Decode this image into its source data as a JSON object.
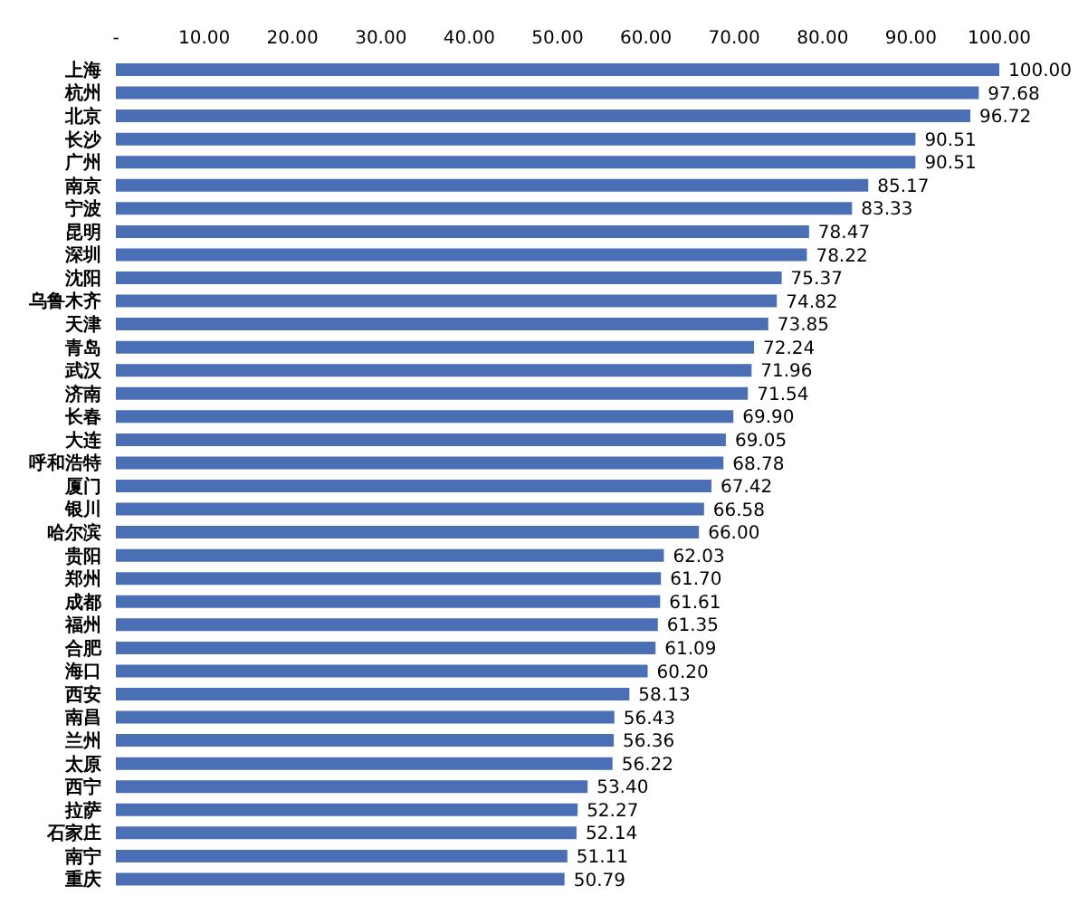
{
  "chart_data": {
    "type": "bar",
    "orientation": "horizontal",
    "categories": [
      "上海",
      "杭州",
      "北京",
      "长沙",
      "广州",
      "南京",
      "宁波",
      "昆明",
      "深圳",
      "沈阳",
      "乌鲁木齐",
      "天津",
      "青岛",
      "武汉",
      "济南",
      "长春",
      "大连",
      "呼和浩特",
      "厦门",
      "银川",
      "哈尔滨",
      "贵阳",
      "郑州",
      "成都",
      "福州",
      "合肥",
      "海口",
      "西安",
      "南昌",
      "兰州",
      "太原",
      "西宁",
      "拉萨",
      "石家庄",
      "南宁",
      "重庆"
    ],
    "values": [
      100.0,
      97.68,
      96.72,
      90.51,
      90.51,
      85.17,
      83.33,
      78.47,
      78.22,
      75.37,
      74.82,
      73.85,
      72.24,
      71.96,
      71.54,
      69.9,
      69.05,
      68.78,
      67.42,
      66.58,
      66.0,
      62.03,
      61.7,
      61.61,
      61.35,
      61.09,
      60.2,
      58.13,
      56.43,
      56.36,
      56.22,
      53.4,
      52.27,
      52.14,
      51.11,
      50.79
    ],
    "value_labels": [
      "100.00",
      "97.68",
      "96.72",
      "90.51",
      "90.51",
      "85.17",
      "83.33",
      "78.47",
      "78.22",
      "75.37",
      "74.82",
      "73.85",
      "72.24",
      "71.96",
      "71.54",
      "69.90",
      "69.05",
      "68.78",
      "67.42",
      "66.58",
      "66.00",
      "62.03",
      "61.70",
      "61.61",
      "61.35",
      "61.09",
      "60.20",
      "58.13",
      "56.43",
      "56.36",
      "56.22",
      "53.40",
      "52.27",
      "52.14",
      "51.11",
      "50.79"
    ],
    "color": "#4a6fb5",
    "xlim": [
      0,
      100
    ],
    "xticks": [
      {
        "value": 0,
        "label": "-"
      },
      {
        "value": 10,
        "label": "10.00"
      },
      {
        "value": 20,
        "label": "20.00"
      },
      {
        "value": 30,
        "label": "30.00"
      },
      {
        "value": 40,
        "label": "40.00"
      },
      {
        "value": 50,
        "label": "50.00"
      },
      {
        "value": 60,
        "label": "60.00"
      },
      {
        "value": 70,
        "label": "70.00"
      },
      {
        "value": 80,
        "label": "80.00"
      },
      {
        "value": 90,
        "label": "90.00"
      },
      {
        "value": 100,
        "label": "100.00"
      }
    ],
    "grid": false,
    "legend": false
  }
}
